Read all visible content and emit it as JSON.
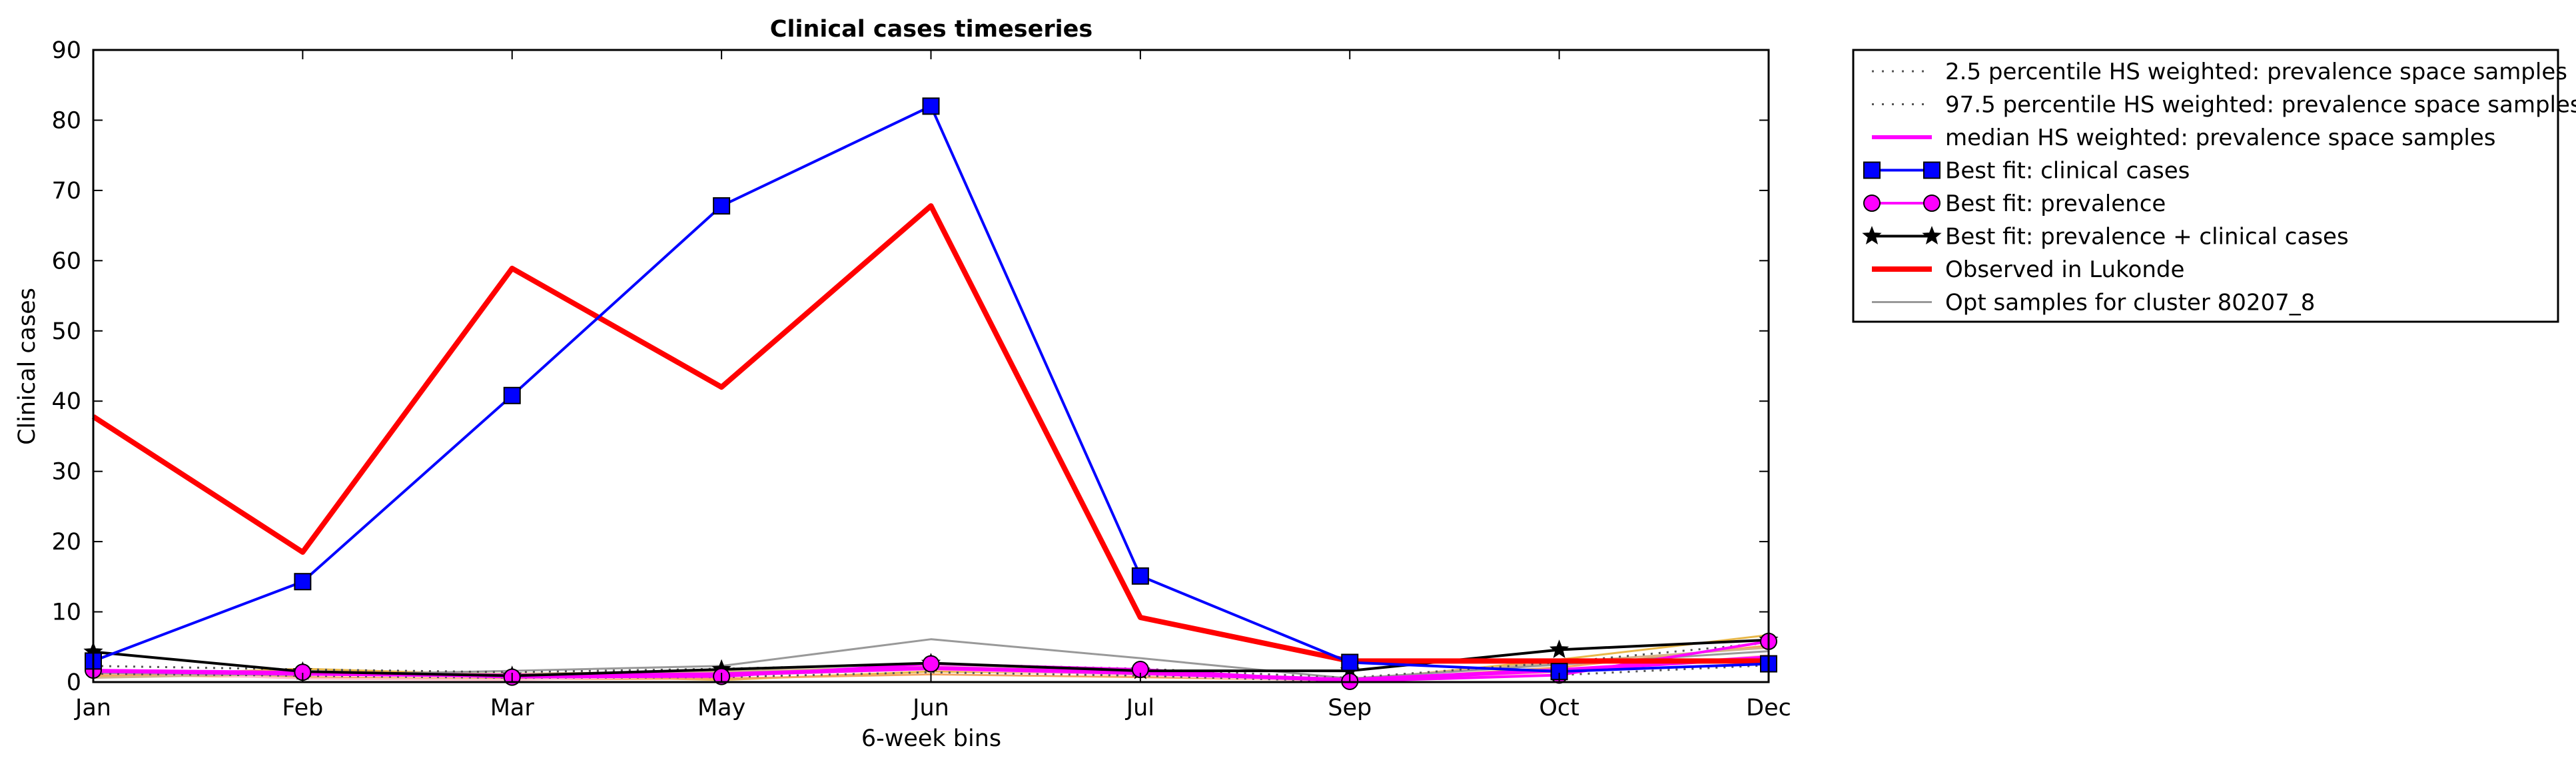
{
  "chart_data": {
    "type": "line",
    "title": "Clinical cases timeseries",
    "xlabel": "6-week bins",
    "ylabel": "Clinical cases",
    "categories": [
      "Jan",
      "Feb",
      "Mar",
      "May",
      "Jun",
      "Jul",
      "Sep",
      "Oct",
      "Dec"
    ],
    "ylim": [
      0,
      90
    ],
    "yticks": [
      0,
      10,
      20,
      30,
      40,
      50,
      60,
      70,
      80,
      90
    ],
    "grid": false,
    "legend_position": "outside-right",
    "series": [
      {
        "name": "2.5 percentile HS weighted: prevalence space samples",
        "style": "dotted",
        "color": "#555555",
        "values": [
          1.2,
          0.9,
          0.6,
          0.7,
          1.4,
          0.9,
          0.1,
          1.0,
          2.4
        ]
      },
      {
        "name": "97.5 percentile HS weighted: prevalence space samples",
        "style": "dotted",
        "color": "#555555",
        "values": [
          2.3,
          1.8,
          1.4,
          1.9,
          2.6,
          1.9,
          0.6,
          2.8,
          5.6
        ]
      },
      {
        "name": "median HS weighted: prevalence space samples",
        "style": "solid",
        "color": "#ff00ff",
        "values": [
          1.6,
          1.2,
          0.9,
          1.1,
          2.0,
          1.3,
          0.3,
          1.7,
          3.5
        ]
      },
      {
        "name": "Best fit: clinical cases",
        "style": "solid",
        "color": "#0000ff",
        "marker": "square",
        "values": [
          3.0,
          14.3,
          40.8,
          67.8,
          82.0,
          15.1,
          2.8,
          1.5,
          2.6
        ]
      },
      {
        "name": "Best fit: prevalence",
        "style": "solid",
        "color": "#ff00ff",
        "marker": "circle",
        "values": [
          1.7,
          1.4,
          0.7,
          0.8,
          2.6,
          1.8,
          0.1,
          1.0,
          5.8
        ]
      },
      {
        "name": "Best fit: prevalence + clinical cases",
        "style": "solid",
        "color": "#000000",
        "marker": "star",
        "values": [
          4.3,
          1.5,
          0.9,
          1.8,
          2.7,
          1.6,
          1.6,
          4.6,
          6.0
        ]
      },
      {
        "name": "Observed in Lukonde",
        "style": "solid",
        "color": "#ff0000",
        "values": [
          37.8,
          18.5,
          58.9,
          42.0,
          67.8,
          9.2,
          3.0,
          3.0,
          3.0
        ]
      },
      {
        "name": "Opt samples for cluster 80207_8",
        "style": "solid",
        "color": "#999999",
        "values": [
          1.3,
          1.0,
          1.6,
          2.3,
          6.1,
          3.4,
          0.5,
          2.5,
          4.4
        ]
      }
    ],
    "extra_sample_lines": [
      {
        "color": "#e8b84a",
        "values": [
          0.8,
          1.9,
          1.0,
          0.3,
          1.5,
          1.2,
          0.2,
          3.2,
          6.7
        ]
      },
      {
        "color": "#f4a460",
        "values": [
          1.0,
          0.7,
          0.4,
          0.5,
          1.1,
          0.7,
          0.2,
          2.1,
          5.2
        ]
      },
      {
        "color": "#ffc0cb",
        "values": [
          1.5,
          0.5,
          0.3,
          0.9,
          1.8,
          1.0,
          0.0,
          1.4,
          3.8
        ]
      },
      {
        "color": "#d2b48c",
        "values": [
          0.6,
          1.2,
          1.2,
          1.5,
          2.2,
          1.5,
          0.4,
          2.8,
          4.9
        ]
      }
    ]
  }
}
